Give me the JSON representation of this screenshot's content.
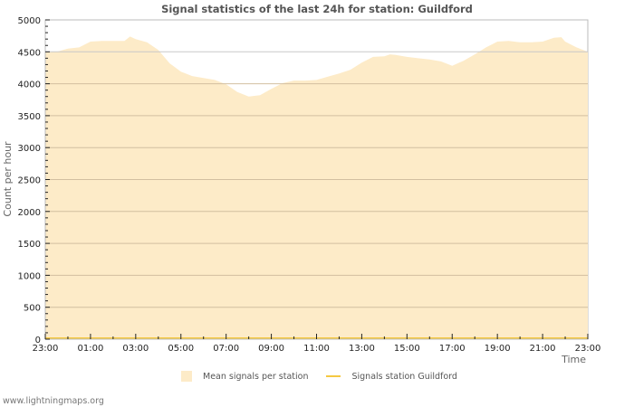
{
  "title": "Signal statistics of the last 24h for station: Guildford",
  "footer": "www.lightningmaps.org",
  "legend": {
    "mean_label": "Mean signals per station",
    "station_label": "Signals station Guildford"
  },
  "axes": {
    "ylabel": "Count per hour",
    "xlabel": "Time",
    "yticks": [
      "0",
      "500",
      "1000",
      "1500",
      "2000",
      "2500",
      "3000",
      "3500",
      "4000",
      "4500",
      "5000"
    ],
    "xticks": [
      "23:00",
      "01:00",
      "03:00",
      "05:00",
      "07:00",
      "09:00",
      "11:00",
      "13:00",
      "15:00",
      "17:00",
      "19:00",
      "21:00",
      "23:00"
    ]
  },
  "colors": {
    "mean_fill": "#fdebc8",
    "station_line": "#f5c842",
    "grid": "#c8c8c8",
    "grid_major": "#d2bfa0",
    "axis": "#bbbbbb"
  },
  "chart_data": {
    "type": "area",
    "title": "Signal statistics of the last 24h for station: Guildford",
    "xlabel": "Time",
    "ylabel": "Count per hour",
    "ylim": [
      0,
      5000
    ],
    "xrange_hours": [
      0,
      24
    ],
    "x_start_label": "23:00",
    "grid": true,
    "legend_position": "bottom",
    "series": [
      {
        "name": "Mean signals per station",
        "type": "area",
        "x_hours": [
          0,
          0.5,
          1,
          1.5,
          2,
          2.5,
          3,
          3.5,
          3.75,
          4,
          4.5,
          5,
          5.5,
          6,
          6.5,
          7,
          7.5,
          8,
          8.5,
          9,
          9.5,
          10,
          10.5,
          11,
          11.5,
          12,
          12.5,
          13,
          13.5,
          14,
          14.5,
          15,
          15.25,
          15.5,
          16,
          16.5,
          17,
          17.5,
          18,
          18.5,
          19,
          19.5,
          20,
          20.5,
          21,
          21.5,
          22,
          22.5,
          22.83,
          23,
          23.5,
          24
        ],
        "values": [
          4490,
          4500,
          4550,
          4570,
          4660,
          4670,
          4670,
          4670,
          4740,
          4700,
          4650,
          4530,
          4320,
          4190,
          4120,
          4090,
          4060,
          3990,
          3870,
          3800,
          3820,
          3920,
          4010,
          4050,
          4050,
          4060,
          4110,
          4160,
          4220,
          4330,
          4420,
          4430,
          4460,
          4450,
          4420,
          4400,
          4380,
          4350,
          4280,
          4360,
          4460,
          4570,
          4660,
          4670,
          4650,
          4650,
          4660,
          4720,
          4730,
          4660,
          4570,
          4500
        ]
      },
      {
        "name": "Signals station Guildford",
        "type": "line",
        "x_hours": [
          0,
          24
        ],
        "values": [
          0,
          0
        ]
      }
    ]
  }
}
